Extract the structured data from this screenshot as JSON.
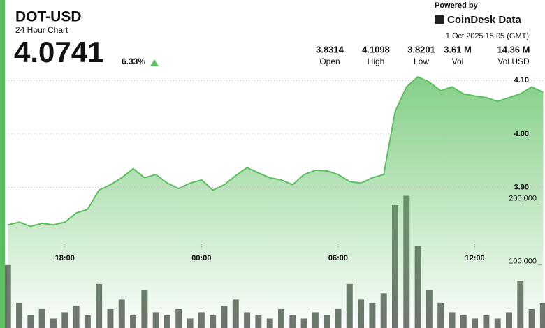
{
  "header": {
    "price": "4.0741",
    "change": "6.33%",
    "powered": "Powered by",
    "brand": "CoinDesk Data",
    "timestamp": "1 Oct 2025 15:05 (GMT)",
    "stats": [
      {
        "value": "3.8314",
        "label": "Open"
      },
      {
        "value": "4.1098",
        "label": "High"
      },
      {
        "value": "3.8201",
        "label": "Low"
      },
      {
        "value": "3.61 M",
        "label": "Vol"
      },
      {
        "value": "14.36 M",
        "label": "Vol USD"
      }
    ]
  },
  "chart_data": {
    "type": "line",
    "title": "DOT-USD",
    "subtitle": "24 Hour Chart",
    "color": "#5cbf5f",
    "volume_color": "#555b55",
    "x": [
      -8.5,
      -8,
      -7.5,
      -7,
      -6.5,
      -6,
      -5.5,
      -5,
      -4.5,
      -4,
      -3.5,
      -3,
      -2.5,
      -2,
      -1.5,
      -1,
      -0.5,
      0,
      0.5,
      1,
      1.5,
      2,
      2.5,
      3,
      3.5,
      4,
      4.5,
      5,
      5.5,
      6,
      6.5,
      7,
      7.5,
      8,
      8.5,
      9,
      9.5,
      10,
      10.5,
      11,
      11.5,
      12,
      12.5,
      13,
      13.5,
      14,
      14.5,
      15
    ],
    "values": [
      3.83,
      3.835,
      3.827,
      3.833,
      3.83,
      3.835,
      3.852,
      3.859,
      3.895,
      3.905,
      3.918,
      3.935,
      3.918,
      3.924,
      3.908,
      3.898,
      3.908,
      3.914,
      3.895,
      3.905,
      3.922,
      3.937,
      3.927,
      3.918,
      3.914,
      3.905,
      3.924,
      3.932,
      3.931,
      3.924,
      3.911,
      3.908,
      3.918,
      3.924,
      4.042,
      4.088,
      4.107,
      4.097,
      4.081,
      4.088,
      4.075,
      4.071,
      4.068,
      4.061,
      4.068,
      4.075,
      4.088,
      4.078
    ],
    "volume": [
      100000,
      40000,
      20000,
      30000,
      15000,
      25000,
      35000,
      20000,
      70000,
      30000,
      45000,
      20000,
      60000,
      25000,
      20000,
      30000,
      15000,
      25000,
      20000,
      35000,
      45000,
      25000,
      20000,
      15000,
      30000,
      20000,
      15000,
      25000,
      20000,
      30000,
      70000,
      45000,
      40000,
      55000,
      195000,
      210000,
      130000,
      60000,
      40000,
      25000,
      20000,
      15000,
      20000,
      15000,
      25000,
      75000,
      30000,
      40000
    ],
    "xlim": [
      -8.6,
      15.08
    ],
    "xticks": [
      {
        "value": -6,
        "label": "18:00"
      },
      {
        "value": 0,
        "label": "00:00"
      },
      {
        "value": 6,
        "label": "06:00"
      },
      {
        "value": 12,
        "label": "12:00"
      }
    ],
    "ylim": [
      3.637,
      4.12
    ],
    "yticks": [
      {
        "value": 3.9,
        "label": "3.90"
      },
      {
        "value": 4.0,
        "label": "4.00"
      },
      {
        "value": 4.1,
        "label": "4.10"
      }
    ],
    "y2lim": [
      0,
      410000
    ],
    "y2ticks": [
      {
        "value": 100000,
        "label": "100,000"
      },
      {
        "value": 200000,
        "label": "200,000"
      }
    ],
    "grid": true
  }
}
